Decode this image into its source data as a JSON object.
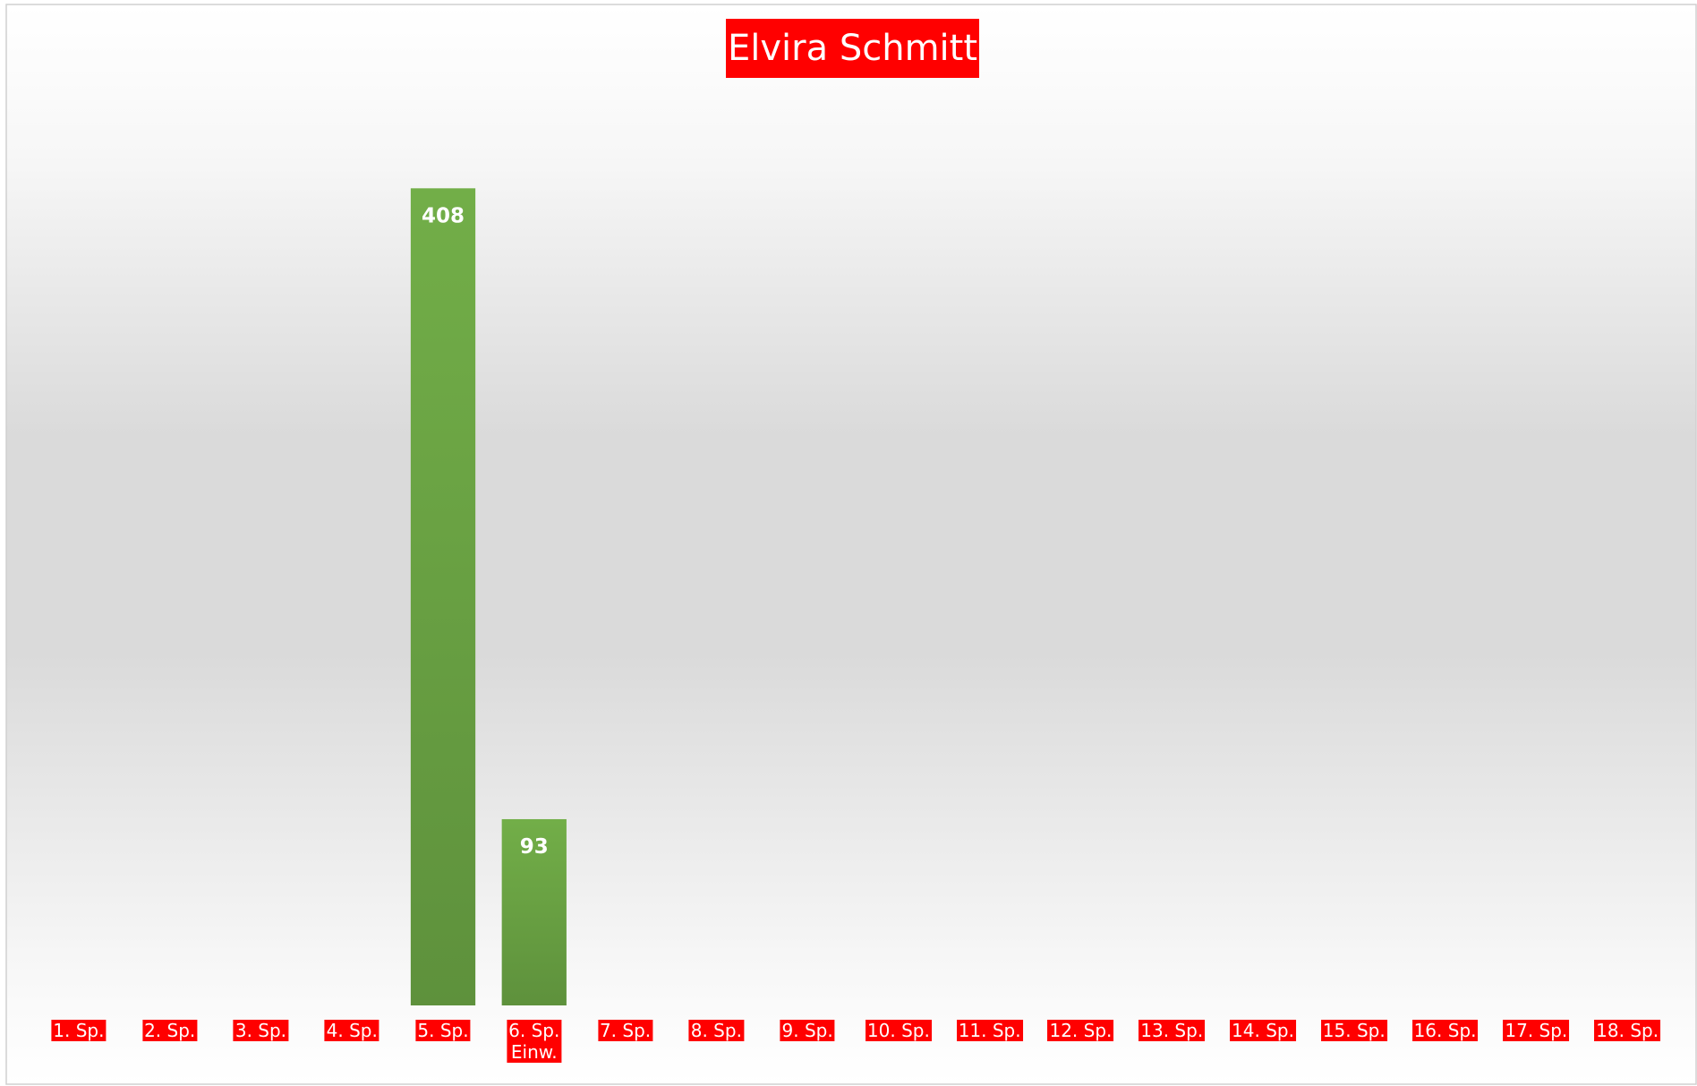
{
  "chart_data": {
    "type": "bar",
    "title": "Elvira Schmitt",
    "categories": [
      "1. Sp.",
      "2. Sp.",
      "3. Sp.",
      "4. Sp.",
      "5. Sp.",
      "6. Sp.\nEinw.",
      "7. Sp.",
      "8. Sp.",
      "9. Sp.",
      "10. Sp.",
      "11. Sp.",
      "12. Sp.",
      "13. Sp.",
      "14. Sp.",
      "15. Sp.",
      "16. Sp.",
      "17. Sp.",
      "18. Sp."
    ],
    "values": [
      null,
      null,
      null,
      null,
      408,
      93,
      null,
      null,
      null,
      null,
      null,
      null,
      null,
      null,
      null,
      null,
      null,
      null
    ],
    "color": "#70ad47",
    "ylim": [
      0,
      460
    ]
  }
}
